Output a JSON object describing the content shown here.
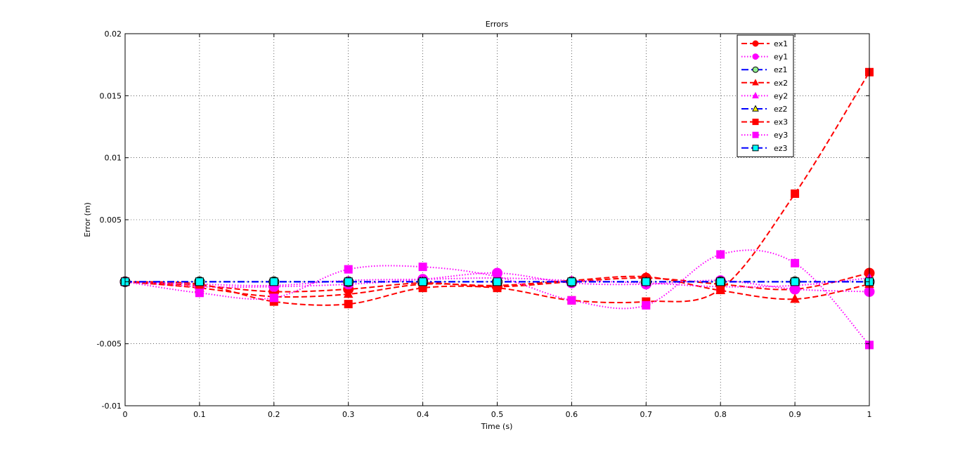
{
  "chart_data": {
    "type": "line",
    "title": "Errors",
    "xlabel": "Time (s)",
    "ylabel": "Error (m)",
    "xlim": [
      0,
      1
    ],
    "ylim": [
      -0.01,
      0.02
    ],
    "xticks": [
      0,
      0.1,
      0.2,
      0.3,
      0.4,
      0.5,
      0.6,
      0.7,
      0.8,
      0.9,
      1
    ],
    "xtick_labels": [
      "0",
      "0.1",
      "0.2",
      "0.3",
      "0.4",
      "0.5",
      "0.6",
      "0.7",
      "0.8",
      "0.9",
      "1"
    ],
    "yticks": [
      -0.01,
      -0.005,
      0,
      0.005,
      0.01,
      0.015,
      0.02
    ],
    "ytick_labels": [
      "-0.01",
      "-0.005",
      "",
      "0.005",
      "0.01",
      "0.015",
      "0.02"
    ],
    "grid": true,
    "legend_position": "top-right",
    "series": [
      {
        "name": "ex1",
        "color": "#ff0000",
        "marker": "circle",
        "marker_face": "#ff0000",
        "dash": "dashed",
        "x": [
          0,
          0.1,
          0.2,
          0.3,
          0.4,
          0.5,
          0.6,
          0.7,
          0.8,
          0.9,
          1.0
        ],
        "y": [
          0,
          -0.0003,
          -0.0008,
          -0.0006,
          -0.0001,
          -0.0004,
          0.0,
          0.0003,
          -0.0002,
          -0.0006,
          0.0007
        ]
      },
      {
        "name": "ey1",
        "color": "#ff00ff",
        "marker": "circle",
        "marker_face": "#ff00ff",
        "dash": "dotted",
        "x": [
          0,
          0.1,
          0.2,
          0.3,
          0.4,
          0.5,
          0.6,
          0.7,
          0.8,
          0.9,
          1.0
        ],
        "y": [
          0,
          -0.0004,
          -0.0004,
          -0.0002,
          0.0002,
          0.0007,
          -0.0001,
          -0.0002,
          0.0001,
          -0.0006,
          -0.0008
        ]
      },
      {
        "name": "ez1",
        "color": "#0000ff",
        "marker": "circle",
        "marker_face": "#90ee90",
        "dash": "dashdot",
        "x": [
          0,
          0.1,
          0.2,
          0.3,
          0.4,
          0.5,
          0.6,
          0.7,
          0.8,
          0.9,
          1.0
        ],
        "y": [
          0,
          0,
          0,
          0,
          0,
          0,
          0,
          0,
          0,
          0,
          0
        ]
      },
      {
        "name": "ex2",
        "color": "#ff0000",
        "marker": "triangle",
        "marker_face": "#ff0000",
        "dash": "dashed",
        "x": [
          0,
          0.1,
          0.2,
          0.3,
          0.4,
          0.5,
          0.6,
          0.7,
          0.8,
          0.9,
          1.0
        ],
        "y": [
          0,
          -0.0005,
          -0.0012,
          -0.001,
          -0.0002,
          -0.0003,
          0.0001,
          0.0004,
          -0.0007,
          -0.0014,
          -0.0002
        ]
      },
      {
        "name": "ey2",
        "color": "#ff00ff",
        "marker": "triangle",
        "marker_face": "#ff00ff",
        "dash": "dotted",
        "x": [
          0,
          0.1,
          0.2,
          0.3,
          0.4,
          0.5,
          0.6,
          0.7,
          0.8,
          0.9,
          1.0
        ],
        "y": [
          0,
          -0.0002,
          -0.0003,
          0.0001,
          0.0002,
          0.0003,
          0.0001,
          -0.0001,
          -0.0004,
          -0.0003,
          0.0003
        ]
      },
      {
        "name": "ez2",
        "color": "#0000ff",
        "marker": "triangle",
        "marker_face": "#ffff00",
        "dash": "dashdot",
        "x": [
          0,
          0.1,
          0.2,
          0.3,
          0.4,
          0.5,
          0.6,
          0.7,
          0.8,
          0.9,
          1.0
        ],
        "y": [
          0,
          0,
          0,
          0,
          0,
          0,
          0,
          0,
          0,
          0,
          0
        ]
      },
      {
        "name": "ex3",
        "color": "#ff0000",
        "marker": "square",
        "marker_face": "#ff0000",
        "dash": "dashed",
        "x": [
          0,
          0.1,
          0.2,
          0.3,
          0.4,
          0.5,
          0.6,
          0.7,
          0.8,
          0.9,
          1.0
        ],
        "y": [
          0,
          -0.0002,
          -0.0016,
          -0.0018,
          -0.0005,
          -0.0005,
          -0.0015,
          -0.0016,
          -0.0006,
          0.0071,
          0.0169
        ]
      },
      {
        "name": "ey3",
        "color": "#ff00ff",
        "marker": "square",
        "marker_face": "#ff00ff",
        "dash": "dotted",
        "x": [
          0,
          0.1,
          0.2,
          0.3,
          0.4,
          0.5,
          0.6,
          0.7,
          0.8,
          0.9,
          1.0
        ],
        "y": [
          0,
          -0.0009,
          -0.0013,
          0.001,
          0.0012,
          0.0004,
          -0.0015,
          -0.0019,
          0.0022,
          0.0015,
          -0.0051
        ]
      },
      {
        "name": "ez3",
        "color": "#0000ff",
        "marker": "square",
        "marker_face": "#00ffff",
        "dash": "dashdot",
        "x": [
          0,
          0.1,
          0.2,
          0.3,
          0.4,
          0.5,
          0.6,
          0.7,
          0.8,
          0.9,
          1.0
        ],
        "y": [
          0,
          0,
          0,
          0,
          0,
          0,
          0,
          0,
          0,
          0,
          0
        ]
      }
    ]
  }
}
